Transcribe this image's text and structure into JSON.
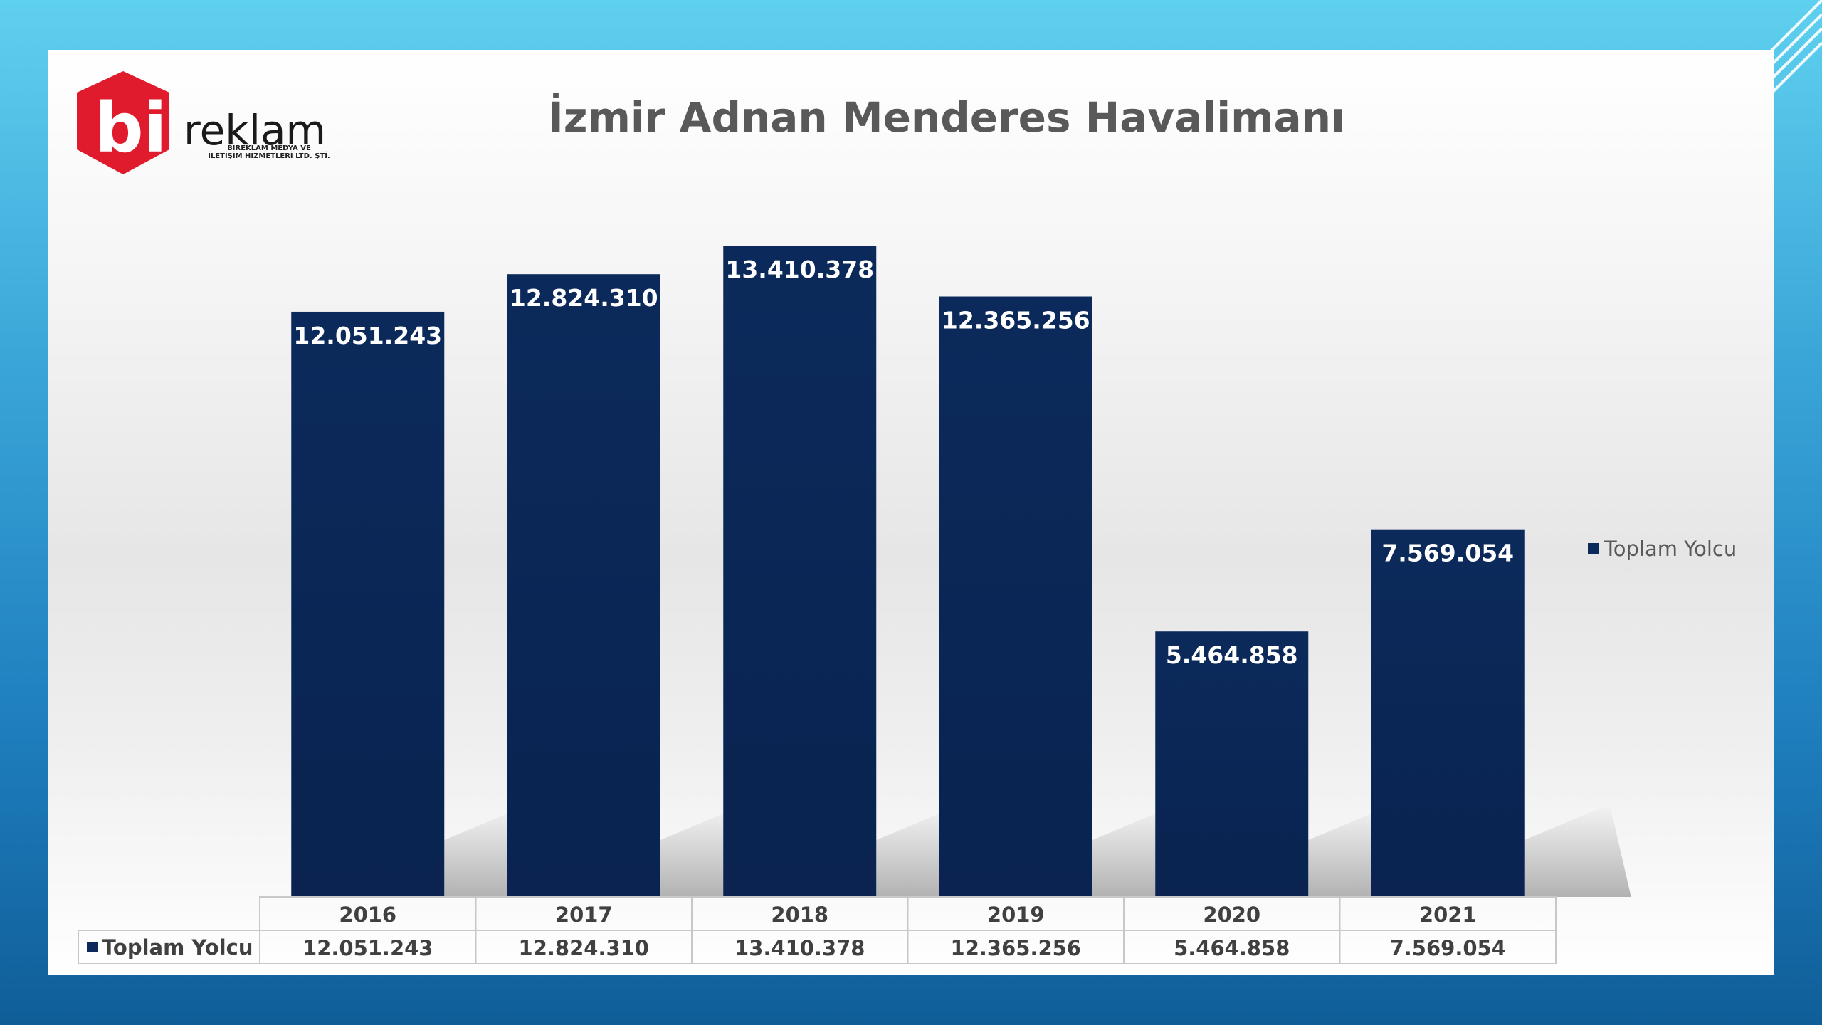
{
  "logo": {
    "mark": "bi",
    "wordmark": "reklam",
    "company_line1": "BİREKLAM MEDYA VE",
    "company_line2": "İLETİŞİM HİZMETLERİ LTD. ŞTİ."
  },
  "colors": {
    "bar": "#0b2a5b",
    "bar_label": "#ffffff",
    "table_text": "#404040",
    "logo_red": "#e01b2e"
  },
  "chart_data": {
    "type": "bar",
    "title": "İzmir Adnan Menderes Havalimanı",
    "categories": [
      "2016",
      "2017",
      "2018",
      "2019",
      "2020",
      "2021"
    ],
    "series": [
      {
        "name": "Toplam Yolcu",
        "values": [
          12051243,
          12824310,
          13410378,
          12365256,
          5464858,
          7569054
        ],
        "labels": [
          "12.051.243",
          "12.824.310",
          "13.410.378",
          "12.365.256",
          "5.464.858",
          "7.569.054"
        ]
      }
    ],
    "ylim": [
      0,
      14000000
    ],
    "grid": false,
    "legend": "right",
    "data_table": true
  }
}
